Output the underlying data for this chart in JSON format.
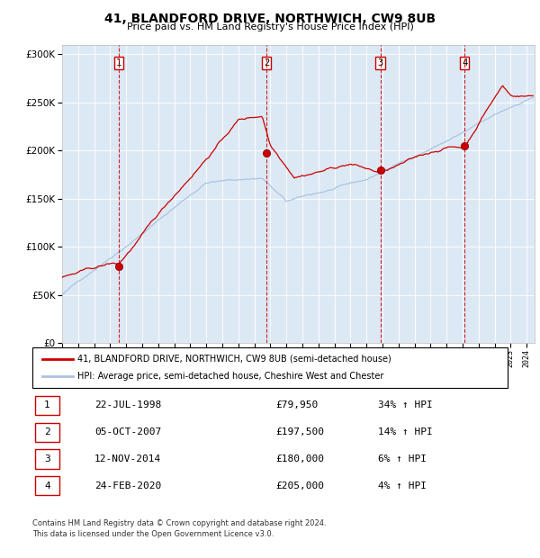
{
  "title": "41, BLANDFORD DRIVE, NORTHWICH, CW9 8UB",
  "subtitle": "Price paid vs. HM Land Registry's House Price Index (HPI)",
  "legend_line1": "41, BLANDFORD DRIVE, NORTHWICH, CW9 8UB (semi-detached house)",
  "legend_line2": "HPI: Average price, semi-detached house, Cheshire West and Chester",
  "footnote1": "Contains HM Land Registry data © Crown copyright and database right 2024.",
  "footnote2": "This data is licensed under the Open Government Licence v3.0.",
  "bg_color": "#dce9f5",
  "red_color": "#cc0000",
  "blue_color": "#aac4e0",
  "vline_color": "#cc0000",
  "transactions": [
    {
      "num": 1,
      "date": "22-JUL-1998",
      "price": 79950,
      "hpi_pct": "34% ↑ HPI",
      "x_year": 1998.55
    },
    {
      "num": 2,
      "date": "05-OCT-2007",
      "price": 197500,
      "hpi_pct": "14% ↑ HPI",
      "x_year": 2007.76
    },
    {
      "num": 3,
      "date": "12-NOV-2014",
      "price": 180000,
      "hpi_pct": "6% ↑ HPI",
      "x_year": 2014.87
    },
    {
      "num": 4,
      "date": "24-FEB-2020",
      "price": 205000,
      "hpi_pct": "4% ↑ HPI",
      "x_year": 2020.13
    }
  ],
  "ylim": [
    0,
    310000
  ],
  "xlim_start": 1995.0,
  "xlim_end": 2024.5
}
